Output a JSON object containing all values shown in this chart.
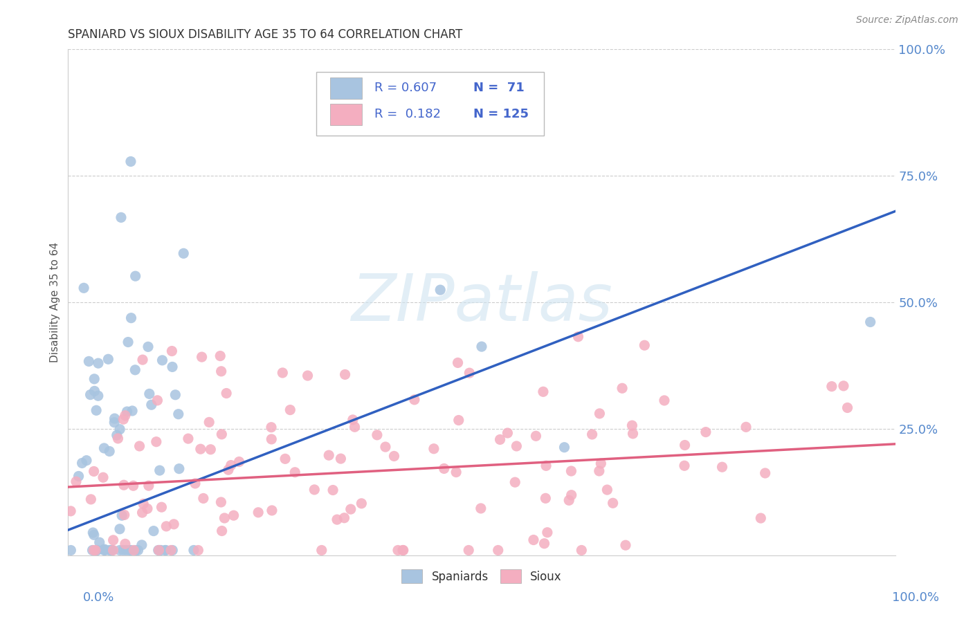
{
  "title": "SPANIARD VS SIOUX DISABILITY AGE 35 TO 64 CORRELATION CHART",
  "ylabel": "Disability Age 35 to 64",
  "source": "Source: ZipAtlas.com",
  "xlim": [
    0.0,
    1.0
  ],
  "ylim": [
    0.0,
    1.0
  ],
  "yticks": [
    0.0,
    0.25,
    0.5,
    0.75,
    1.0
  ],
  "yticklabels": [
    "",
    "25.0%",
    "50.0%",
    "75.0%",
    "100.0%"
  ],
  "spaniards_color": "#a8c4e0",
  "sioux_color": "#f4aec0",
  "spaniards_line_color": "#3060c0",
  "sioux_line_color": "#e06080",
  "legend_text_color": "#4466cc",
  "R_spaniards": 0.607,
  "N_spaniards": 71,
  "R_sioux": 0.182,
  "N_sioux": 125,
  "watermark_color": "#d8e8f0",
  "watermark_text": "ZIPatlas",
  "grid_color": "#cccccc",
  "title_color": "#333333",
  "tick_label_color": "#5588cc"
}
